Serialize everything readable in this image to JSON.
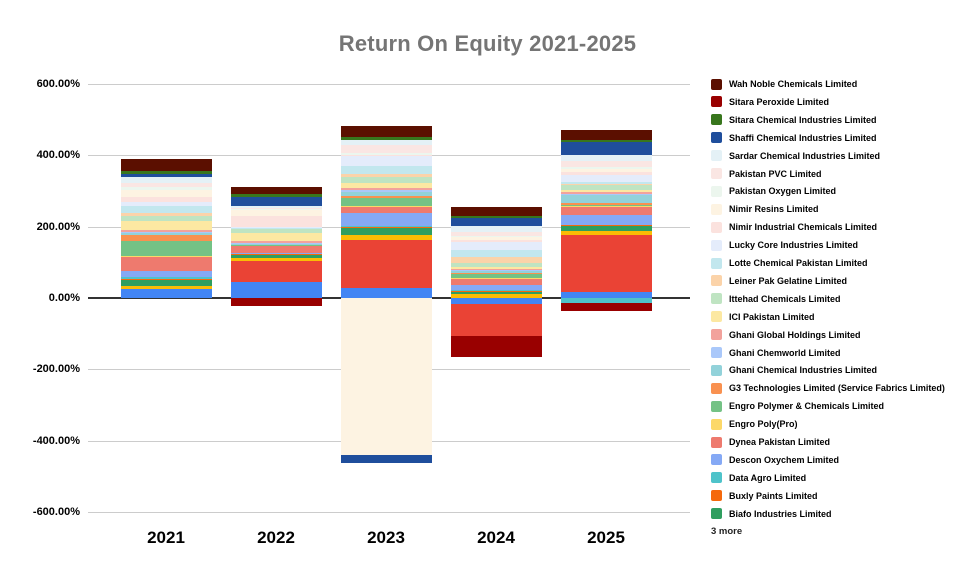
{
  "title": "Return On Equity 2021-2025",
  "legend": {
    "more_label": "3 more"
  },
  "axes": {
    "y_tick_labels": [
      "600.00%",
      "400.00%",
      "200.00%",
      "0.00%",
      "-200.00%",
      "-400.00%",
      "-600.00%"
    ],
    "x_labels": [
      "2021",
      "2022",
      "2023",
      "2024",
      "2025"
    ]
  },
  "chart_data": {
    "type": "bar",
    "stacked": true,
    "title": "Return On Equity 2021-2025",
    "categories": [
      "2021",
      "2022",
      "2023",
      "2024",
      "2025"
    ],
    "xlabel": "",
    "ylabel": "",
    "units": "percent",
    "ylim": [
      -600,
      600
    ],
    "y_tick_step": 200,
    "grid": true,
    "legend_position": "right",
    "hidden_series_count": 3,
    "series": [
      {
        "name": "Wah Noble Chemicals Limited",
        "color": "#5b0f00",
        "in_legend": true,
        "values": [
          33,
          20,
          31,
          24,
          28
        ]
      },
      {
        "name": "Sitara Peroxide Limited",
        "color": "#990000",
        "in_legend": true,
        "values": [
          0,
          -22,
          0,
          -58,
          -23
        ]
      },
      {
        "name": "Sitara Chemical Industries Limited",
        "color": "#38761d",
        "in_legend": true,
        "values": [
          8,
          10,
          7,
          6,
          7
        ]
      },
      {
        "name": "Shaffi Chemical Industries Limited",
        "color": "#1f4e9c",
        "in_legend": true,
        "values": [
          8,
          23,
          -23,
          21,
          35
        ]
      },
      {
        "name": "Sardar Chemical Industries Limited",
        "color": "#e4f1f6",
        "in_legend": true,
        "values": [
          17,
          8,
          15,
          19,
          18
        ]
      },
      {
        "name": "Pakistan PVC Limited",
        "color": "#fae6e3",
        "in_legend": true,
        "values": [
          12,
          2,
          23,
          10,
          15
        ]
      },
      {
        "name": "Pakistan Oxygen Limited",
        "color": "#ecf6ee",
        "in_legend": true,
        "values": [
          8,
          2,
          4,
          4,
          5
        ]
      },
      {
        "name": "Nimir Resins Limited",
        "color": "#fdf3e2",
        "in_legend": true,
        "values": [
          20,
          18,
          -440,
          8,
          10
        ]
      },
      {
        "name": "Nimir Industrial Chemicals Limited",
        "color": "#fbe2de",
        "in_legend": true,
        "values": [
          15,
          30,
          5,
          5,
          8
        ]
      },
      {
        "name": "Lucky Core Industries Limited",
        "color": "#e4ecfb",
        "in_legend": true,
        "values": [
          10,
          2,
          26,
          23,
          20
        ]
      },
      {
        "name": "Lotte Chemical Pakistan Limited",
        "color": "#c2e7ee",
        "in_legend": true,
        "values": [
          20,
          2,
          22,
          19,
          5
        ]
      },
      {
        "name": "Leiner Pak Gelatine Limited",
        "color": "#fbd3a9",
        "in_legend": true,
        "values": [
          8,
          2,
          9,
          16,
          3
        ]
      },
      {
        "name": "Ittehad Chemicals Limited",
        "color": "#bfe4c2",
        "in_legend": true,
        "values": [
          14,
          10,
          17,
          12,
          15
        ]
      },
      {
        "name": "ICI Pakistan Limited",
        "color": "#fce8a2",
        "in_legend": true,
        "values": [
          24,
          22,
          15,
          5,
          5
        ]
      },
      {
        "name": "Ghani Global Holdings Limited",
        "color": "#f2a29c",
        "in_legend": true,
        "values": [
          6,
          8,
          5,
          3,
          5
        ]
      },
      {
        "name": "Ghani Chemworld Limited",
        "color": "#aac8fa",
        "in_legend": true,
        "values": [
          4,
          1,
          6,
          2,
          3
        ]
      },
      {
        "name": "Ghani Chemical Industries Limited",
        "color": "#92d2da",
        "in_legend": true,
        "values": [
          4,
          1,
          12,
          6,
          24
        ]
      },
      {
        "name": "G3 Technologies Limited  (Service Fabrics Limited)",
        "color": "#f99150",
        "in_legend": true,
        "values": [
          17,
          1,
          4,
          2,
          3
        ]
      },
      {
        "name": "Engro Polymer & Chemicals Limited",
        "color": "#74c285",
        "in_legend": true,
        "values": [
          42,
          2,
          22,
          12,
          5
        ]
      },
      {
        "name": "Engro Poly(Pro)",
        "color": "#fcd868",
        "in_legend": true,
        "values": [
          5,
          1,
          3,
          2,
          3
        ]
      },
      {
        "name": "Dynea Pakistan Limited",
        "color": "#ee7a6e",
        "in_legend": true,
        "values": [
          38,
          20,
          19,
          19,
          22
        ]
      },
      {
        "name": "Descon Oxychem Limited",
        "color": "#85a9f5",
        "in_legend": true,
        "values": [
          17,
          2,
          35,
          14,
          26
        ]
      },
      {
        "name": "Data Agro Limited",
        "color": "#4ec3ca",
        "in_legend": true,
        "values": [
          6,
          1,
          4,
          1,
          -13
        ]
      },
      {
        "name": "Buxly Paints Limited",
        "color": "#f5690c",
        "in_legend": true,
        "values": [
          3,
          1,
          2,
          1,
          2
        ]
      },
      {
        "name": "Biafo Industries Limited",
        "color": "#2f9e5f",
        "in_legend": true,
        "values": [
          16,
          10,
          19,
          9,
          17
        ]
      },
      {
        "name": "",
        "color": "#fbbc04",
        "in_legend": false,
        "values": [
          10,
          8,
          14,
          11,
          11
        ]
      },
      {
        "name": "",
        "color": "#ea4335",
        "in_legend": false,
        "values": [
          0,
          60,
          135,
          -90,
          160
        ]
      },
      {
        "name": "",
        "color": "#4285f4",
        "in_legend": false,
        "values": [
          24,
          45,
          28,
          -17,
          16
        ]
      }
    ]
  }
}
